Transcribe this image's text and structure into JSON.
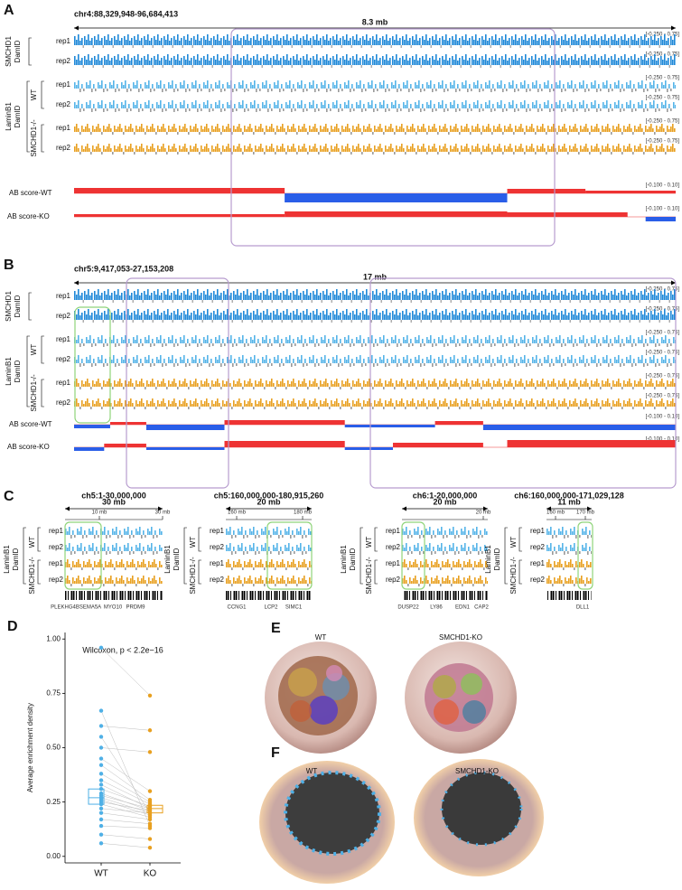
{
  "panels": {
    "A": {
      "label": "A",
      "region": "chr4:88,329,948-96,684,413",
      "span": "8.3 mb",
      "groups": [
        "SMCHD1",
        "DamID",
        "LaminB1",
        "DamID",
        "WT",
        "SMCHD1-/-"
      ],
      "tracks": [
        {
          "rep": "rep1",
          "range": "[-0.250 - 0.75]"
        },
        {
          "rep": "rep2",
          "range": "[-0.250 - 0.75]"
        },
        {
          "rep": "rep1",
          "range": "[-0.250 - 0.75]"
        },
        {
          "rep": "rep2",
          "range": "[-0.250 - 0.75]"
        },
        {
          "rep": "rep1",
          "range": "[-0.250 - 0.75]"
        },
        {
          "rep": "rep2",
          "range": "[-0.250 - 0.75]"
        }
      ],
      "ab": [
        {
          "name": "AB score-WT",
          "range": "[-0.100 - 0.10]"
        },
        {
          "name": "AB score-KO",
          "range": "[-0.100 - 0.10]"
        }
      ]
    },
    "B": {
      "label": "B",
      "region": "chr5:9,417,053-27,153,208",
      "span": "17 mb",
      "groups": [
        "SMCHD1",
        "DamID",
        "LaminB1",
        "DamID",
        "WT",
        "SMCHD1-/-"
      ],
      "tracks": [
        {
          "rep": "rep1",
          "range": "[-0.250 - 0.75]"
        },
        {
          "rep": "rep2",
          "range": "[-0.250 - 0.75]"
        },
        {
          "rep": "rep1",
          "range": "[-0.250 - 0.75]"
        },
        {
          "rep": "rep2",
          "range": "[-0.250 - 0.75]"
        },
        {
          "rep": "rep1",
          "range": "[-0.250 - 0.75]"
        },
        {
          "rep": "rep2",
          "range": "[-0.250 - 0.75]"
        }
      ],
      "ab": [
        {
          "name": "AB score-WT",
          "range": "[-0.100 - 0.10]"
        },
        {
          "name": "AB score-KO",
          "range": "[-0.100 - 0.10]"
        }
      ]
    },
    "C": {
      "label": "C",
      "groups": [
        "LaminB1",
        "DamID",
        "WT",
        "SMCHD1-/-"
      ],
      "subpanels": [
        {
          "region": "ch5:1-30,000,000",
          "span": "30 mb",
          "ticks": [
            "10 mb",
            "30 mb"
          ],
          "reps": [
            "rep1",
            "rep2",
            "rep1",
            "rep2"
          ],
          "genes": [
            "PLEKHG4B",
            "SEMA5A",
            "MYO10",
            "PRDM9"
          ]
        },
        {
          "region": "ch5:160,000,000-180,915,260",
          "span": "20 mb",
          "ticks": [
            "160 mb",
            "180 mb"
          ],
          "reps": [
            "rep1",
            "rep2",
            "rep1",
            "rep2"
          ],
          "genes": [
            "CCNG1",
            "LCP2",
            "SIMC1"
          ]
        },
        {
          "region": "ch6:1-20,000,000",
          "span": "20 mb",
          "ticks": [
            "20 mb"
          ],
          "reps": [
            "rep1",
            "rep2",
            "rep1",
            "rep2"
          ],
          "genes": [
            "DUSP22",
            "LY86",
            "EDN1",
            "CAP2"
          ]
        },
        {
          "region": "ch6:160,000,000-171,029,128",
          "span": "11 mb",
          "ticks": [
            "160 mb",
            "170 mb"
          ],
          "reps": [
            "rep1",
            "rep2",
            "rep1",
            "rep2"
          ],
          "genes": [
            "DLL1"
          ]
        }
      ]
    },
    "E": {
      "label": "E",
      "titles": [
        "WT",
        "SMCHD1-KO"
      ]
    },
    "F": {
      "label": "F",
      "titles": [
        "WT",
        "SMCHD1-KO"
      ]
    }
  },
  "chart_data": {
    "type": "paired_box",
    "label": "D",
    "annotation": "Wilcoxon, p < 2.2e−16",
    "ylabel": "Average enrichment density",
    "categories": [
      "WT",
      "KO"
    ],
    "ylim": [
      -0.03,
      1.03
    ],
    "yticks": [
      {
        "value": 0,
        "label": "0.00"
      },
      {
        "value": 0.25,
        "label": "0.25"
      },
      {
        "value": 0.5,
        "label": "0.50"
      },
      {
        "value": 0.75,
        "label": "0.75"
      },
      {
        "value": 1,
        "label": "1.00"
      }
    ],
    "series": [
      {
        "name": "WT",
        "color": "#4fb0e6",
        "values": [
          0.96,
          0.67,
          0.6,
          0.55,
          0.5,
          0.45,
          0.42,
          0.38,
          0.35,
          0.33,
          0.31,
          0.29,
          0.28,
          0.27,
          0.26,
          0.25,
          0.24,
          0.22,
          0.2,
          0.17,
          0.14,
          0.1,
          0.06
        ],
        "box": {
          "q1": 0.24,
          "median": 0.27,
          "q3": 0.31
        }
      },
      {
        "name": "KO",
        "color": "#e8a020",
        "values": [
          0.74,
          0.14,
          0.58,
          0.2,
          0.48,
          0.3,
          0.26,
          0.25,
          0.24,
          0.22,
          0.23,
          0.21,
          0.22,
          0.2,
          0.19,
          0.21,
          0.18,
          0.2,
          0.17,
          0.15,
          0.13,
          0.08,
          0.04
        ],
        "box": {
          "q1": 0.2,
          "median": 0.22,
          "q3": 0.235
        }
      }
    ],
    "pair_color": "#bdbdbd"
  }
}
